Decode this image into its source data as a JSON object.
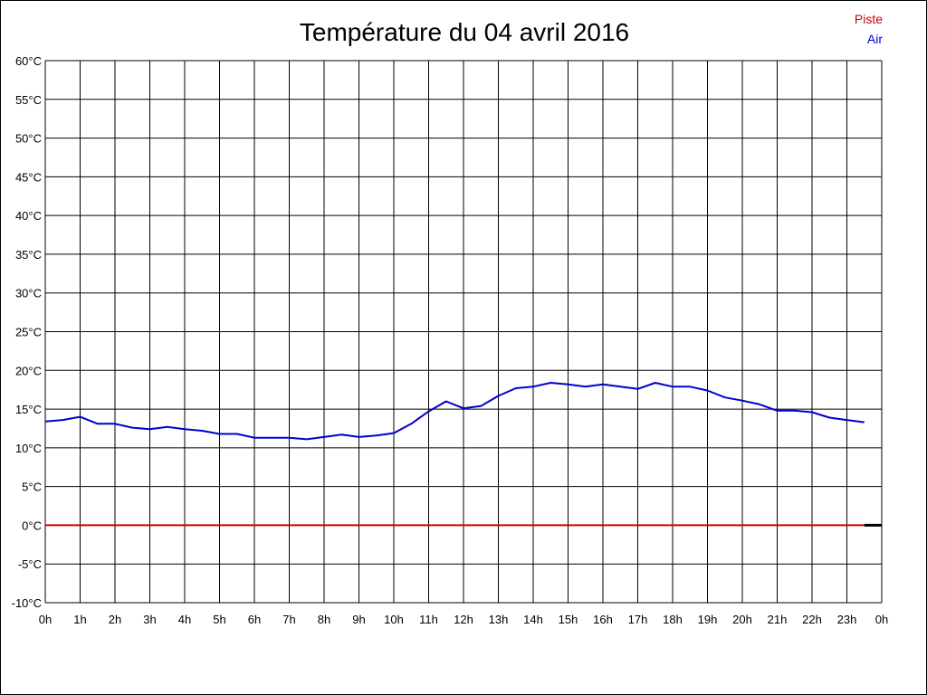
{
  "chart_data": {
    "type": "line",
    "title": "Température du 04 avril 2016",
    "xlabel": "",
    "ylabel": "",
    "grid": true,
    "legend_placement": "top-right",
    "x_ticks": [
      "0h",
      "1h",
      "2h",
      "3h",
      "4h",
      "5h",
      "6h",
      "7h",
      "8h",
      "9h",
      "10h",
      "11h",
      "12h",
      "13h",
      "14h",
      "15h",
      "16h",
      "17h",
      "18h",
      "19h",
      "20h",
      "21h",
      "22h",
      "23h",
      "0h"
    ],
    "y_ticks": [
      "60°C",
      "55°C",
      "50°C",
      "45°C",
      "40°C",
      "35°C",
      "30°C",
      "25°C",
      "20°C",
      "15°C",
      "10°C",
      "5°C",
      "0°C",
      "-5°C",
      "-10°C"
    ],
    "xlim": [
      0,
      24
    ],
    "ylim": [
      -10,
      60
    ],
    "series": [
      {
        "name": "Piste",
        "color": "#cc0000",
        "x": [
          0,
          23.5
        ],
        "y": [
          0,
          0
        ]
      },
      {
        "name": "Air",
        "color": "#0000cc",
        "x": [
          0,
          0.5,
          1,
          1.5,
          2,
          2.5,
          3,
          3.5,
          4,
          4.5,
          5,
          5.5,
          6,
          6.5,
          7,
          7.5,
          8,
          8.5,
          9,
          9.5,
          10,
          10.5,
          11,
          11.5,
          12,
          12.5,
          13,
          13.5,
          14,
          14.5,
          15,
          15.5,
          16,
          16.5,
          17,
          17.5,
          18,
          18.5,
          19,
          19.5,
          20,
          20.5,
          21,
          21.5,
          22,
          22.5,
          23,
          23.5
        ],
        "y": [
          13.4,
          13.6,
          14.0,
          13.1,
          13.1,
          12.6,
          12.4,
          12.7,
          12.4,
          12.2,
          11.8,
          11.8,
          11.3,
          11.3,
          11.3,
          11.1,
          11.4,
          11.7,
          11.4,
          11.6,
          11.9,
          13.1,
          14.7,
          16.0,
          15.1,
          15.4,
          16.7,
          17.7,
          17.9,
          18.4,
          18.2,
          17.9,
          18.2,
          17.9,
          17.6,
          18.4,
          17.9,
          17.9,
          17.4,
          16.5,
          16.1,
          15.6,
          14.8,
          14.8,
          14.6,
          13.9,
          13.6,
          13.3
        ]
      }
    ]
  }
}
